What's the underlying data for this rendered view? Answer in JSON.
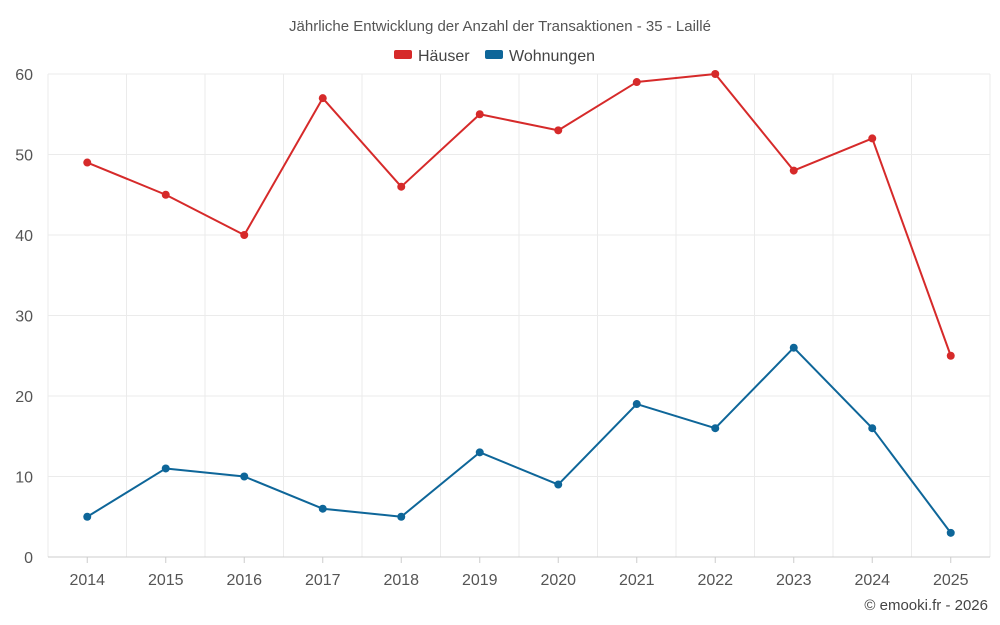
{
  "chart_data": {
    "type": "line",
    "title": "Jährliche Entwicklung der Anzahl der Transaktionen - 35 - Laillé",
    "categories": [
      "2014",
      "2015",
      "2016",
      "2017",
      "2018",
      "2019",
      "2020",
      "2021",
      "2022",
      "2023",
      "2024",
      "2025"
    ],
    "series": [
      {
        "name": "Häuser",
        "color": "#d62a2a",
        "values": [
          49,
          45,
          40,
          57,
          46,
          55,
          53,
          59,
          60,
          48,
          52,
          25
        ]
      },
      {
        "name": "Wohnungen",
        "color": "#0e6699",
        "values": [
          5,
          11,
          10,
          6,
          5,
          13,
          9,
          19,
          16,
          26,
          16,
          3
        ]
      }
    ],
    "ylim": [
      0,
      60
    ],
    "yticks": [
      0,
      10,
      20,
      30,
      40,
      50,
      60
    ],
    "xlabel": "",
    "ylabel": "",
    "grid": true,
    "legend": "top-center"
  },
  "credit": "© emooki.fr - 2026"
}
